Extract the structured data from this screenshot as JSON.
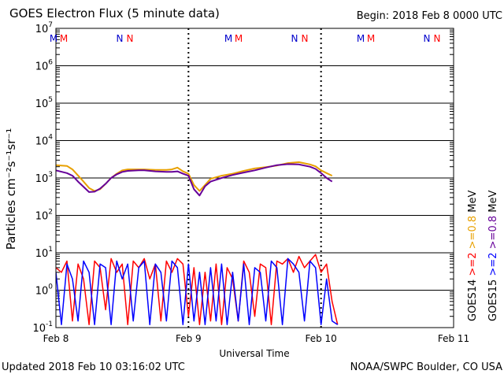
{
  "header": {
    "title": "GOES Electron Flux (5 minute data)",
    "begin": "Begin: 2018 Feb 8 0000 UTC"
  },
  "footer": {
    "updated": "Updated 2018 Feb 10 03:16:02 UTC",
    "credit": "NOAA/SWPC Boulder, CO USA"
  },
  "chart_data": {
    "type": "line",
    "title": "GOES Electron Flux (5 minute data)",
    "xlabel": "Universal Time",
    "ylabel": "Particles cm⁻²s⁻¹sr⁻¹",
    "x_unit": "hours since 2018 Feb 8 0000 UTC",
    "xlim": [
      0,
      72
    ],
    "x_ticks": [
      {
        "x": 0,
        "label": "Feb 8"
      },
      {
        "x": 24,
        "label": "Feb 9"
      },
      {
        "x": 48,
        "label": "Feb 10"
      },
      {
        "x": 72,
        "label": "Feb 11"
      }
    ],
    "y_scale": "log",
    "ylim": [
      0.1,
      10000000
    ],
    "y_ticks": [
      {
        "exp": "-1"
      },
      {
        "exp": "0"
      },
      {
        "exp": "1"
      },
      {
        "exp": "2"
      },
      {
        "exp": "3"
      },
      {
        "exp": "4"
      },
      {
        "exp": "5"
      },
      {
        "exp": "6"
      },
      {
        "exp": "7"
      }
    ],
    "threshold": 1000,
    "day_markers": [
      "M",
      "M",
      "N",
      "N",
      "M",
      "M",
      "N",
      "N",
      "M",
      "M",
      "N",
      "N"
    ],
    "legend": [
      {
        "label": "GOES14",
        "color": "#000000"
      },
      {
        "label": ">=2",
        "color": "#ff0000"
      },
      {
        "label": ">=0.8",
        "color": "#e8a000"
      },
      {
        "label": "MeV",
        "color": "#000000"
      },
      {
        "label": "GOES15",
        "color": "#000000"
      },
      {
        "label": ">=2",
        "color": "#0000ff"
      },
      {
        "label": ">=0.8",
        "color": "#660099"
      },
      {
        "label": "MeV",
        "color": "#000000"
      }
    ],
    "series": [
      {
        "name": "GOES14 >=0.8 MeV",
        "color": "#e8a000",
        "x": [
          0,
          2,
          3,
          5,
          6,
          7,
          8,
          9,
          10,
          11,
          12,
          13,
          15,
          16,
          18,
          20,
          21,
          22,
          23,
          24,
          25,
          26,
          27,
          28,
          30,
          32,
          34,
          36,
          38,
          40,
          42,
          44,
          46,
          47,
          48,
          49,
          50
        ],
        "y": [
          2200,
          2100,
          1700,
          800,
          540,
          450,
          500,
          700,
          1000,
          1300,
          1600,
          1700,
          1700,
          1700,
          1650,
          1650,
          1700,
          1900,
          1500,
          1300,
          650,
          450,
          650,
          950,
          1150,
          1300,
          1550,
          1800,
          1950,
          2150,
          2500,
          2650,
          2300,
          2050,
          1600,
          1350,
          1150
        ]
      },
      {
        "name": "GOES15 >=0.8 MeV",
        "color": "#660099",
        "x": [
          0,
          2,
          3,
          4,
          6,
          7,
          8,
          9,
          10,
          11,
          12,
          13,
          15,
          16,
          18,
          20,
          21,
          22,
          23,
          24,
          25,
          26,
          27,
          28,
          30,
          32,
          34,
          36,
          38,
          40,
          42,
          44,
          46,
          47,
          48,
          49,
          50
        ],
        "y": [
          1600,
          1350,
          1150,
          800,
          420,
          430,
          520,
          700,
          1000,
          1250,
          1450,
          1550,
          1600,
          1600,
          1500,
          1450,
          1450,
          1500,
          1300,
          1150,
          500,
          340,
          600,
          800,
          1000,
          1200,
          1400,
          1600,
          1900,
          2200,
          2350,
          2300,
          2000,
          1750,
          1350,
          1000,
          800
        ]
      },
      {
        "name": "GOES14 >=2 MeV",
        "color": "#ff0000",
        "x": [
          0,
          1,
          2,
          3,
          4,
          5,
          6,
          7,
          8,
          9,
          10,
          11,
          12,
          13,
          14,
          15,
          16,
          17,
          18,
          19,
          20,
          21,
          22,
          23,
          24,
          25,
          26,
          27,
          28,
          29,
          30,
          31,
          32,
          33,
          34,
          35,
          36,
          37,
          38,
          39,
          40,
          41,
          42,
          43,
          44,
          45,
          46,
          47,
          48,
          49,
          50,
          51
        ],
        "y": [
          4,
          3,
          6,
          0.15,
          5,
          2,
          0.12,
          6,
          4,
          0.3,
          7,
          3,
          5,
          0.12,
          6,
          4,
          7,
          2,
          5,
          0.15,
          6,
          3,
          7,
          5,
          0.2,
          4,
          0.12,
          3,
          0.15,
          5,
          0.12,
          4,
          2,
          0.15,
          6,
          3,
          0.2,
          5,
          4,
          0.12,
          6,
          5,
          7,
          3,
          8,
          4,
          6,
          9,
          3,
          5,
          0.5,
          0.12
        ]
      },
      {
        "name": "GOES15 >=2 MeV",
        "color": "#0000ff",
        "x": [
          0,
          1,
          2,
          3,
          4,
          5,
          6,
          7,
          8,
          9,
          10,
          11,
          12,
          13,
          14,
          15,
          16,
          17,
          18,
          19,
          20,
          21,
          22,
          23,
          24,
          25,
          26,
          27,
          28,
          29,
          30,
          31,
          32,
          33,
          34,
          35,
          36,
          37,
          38,
          39,
          40,
          41,
          42,
          43,
          44,
          45,
          46,
          47,
          48,
          49,
          50,
          51
        ],
        "y": [
          3,
          0.12,
          5,
          2,
          0.15,
          6,
          3,
          0.12,
          5,
          4,
          0.12,
          6,
          2,
          5,
          0.15,
          4,
          6,
          0.12,
          5,
          3,
          0.15,
          6,
          4,
          0.12,
          5,
          0.15,
          3,
          0.12,
          4,
          0.15,
          5,
          0.12,
          3,
          0.15,
          5,
          0.12,
          4,
          3,
          0.15,
          6,
          4,
          0.12,
          7,
          5,
          3,
          0.15,
          6,
          4,
          0.12,
          2,
          0.15,
          0.12
        ]
      }
    ]
  }
}
